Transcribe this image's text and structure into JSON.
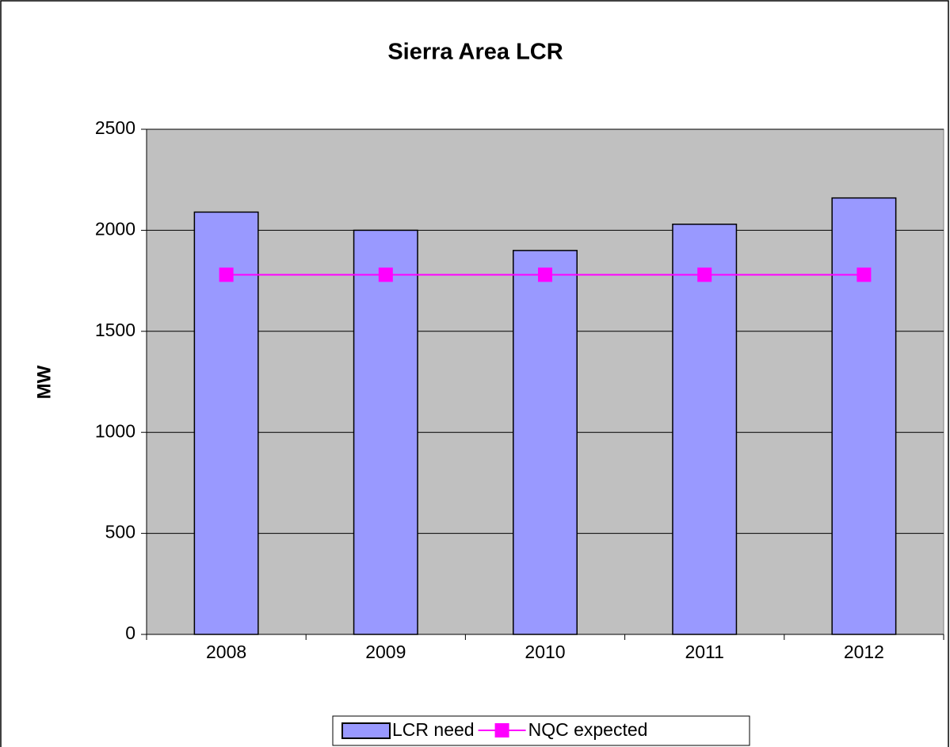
{
  "chart_data": {
    "type": "bar",
    "title": "Sierra Area LCR",
    "y_label": "MW",
    "categories": [
      "2008",
      "2009",
      "2010",
      "2011",
      "2012"
    ],
    "series": [
      {
        "name": "LCR need",
        "type": "bar",
        "color": "#9999ff",
        "values": [
          2090,
          2000,
          1900,
          2030,
          2160
        ]
      },
      {
        "name": "NQC expected",
        "type": "line",
        "color": "#ff00ff",
        "values": [
          1780,
          1780,
          1780,
          1780,
          1780
        ]
      }
    ],
    "ylim": [
      0,
      2500
    ],
    "yticks": [
      0,
      500,
      1000,
      1500,
      2000,
      2500
    ],
    "grid": true,
    "legend": "bottom"
  }
}
